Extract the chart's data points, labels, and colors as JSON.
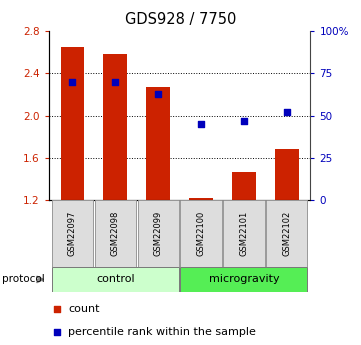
{
  "title": "GDS928 / 7750",
  "samples": [
    "GSM22097",
    "GSM22098",
    "GSM22099",
    "GSM22100",
    "GSM22101",
    "GSM22102"
  ],
  "bar_values": [
    2.65,
    2.58,
    2.27,
    1.22,
    1.47,
    1.68
  ],
  "percentile_values": [
    70,
    70,
    63,
    45,
    47,
    52
  ],
  "ylim_left": [
    1.2,
    2.8
  ],
  "ylim_right": [
    0,
    100
  ],
  "yticks_left": [
    1.2,
    1.6,
    2.0,
    2.4,
    2.8
  ],
  "yticks_right": [
    0,
    25,
    50,
    75,
    100
  ],
  "yticklabels_right": [
    "0",
    "25",
    "50",
    "75",
    "100%"
  ],
  "bar_color": "#CC2200",
  "dot_color": "#0000BB",
  "bar_width": 0.55,
  "groups": [
    {
      "label": "control",
      "indices": [
        0,
        1,
        2
      ],
      "color": "#CCFFCC"
    },
    {
      "label": "microgravity",
      "indices": [
        3,
        4,
        5
      ],
      "color": "#55EE55"
    }
  ],
  "protocol_label": "protocol",
  "legend_count_label": "count",
  "legend_percentile_label": "percentile rank within the sample",
  "tick_label_color_left": "#CC2200",
  "tick_label_color_right": "#0000BB",
  "base_value": 1.2
}
